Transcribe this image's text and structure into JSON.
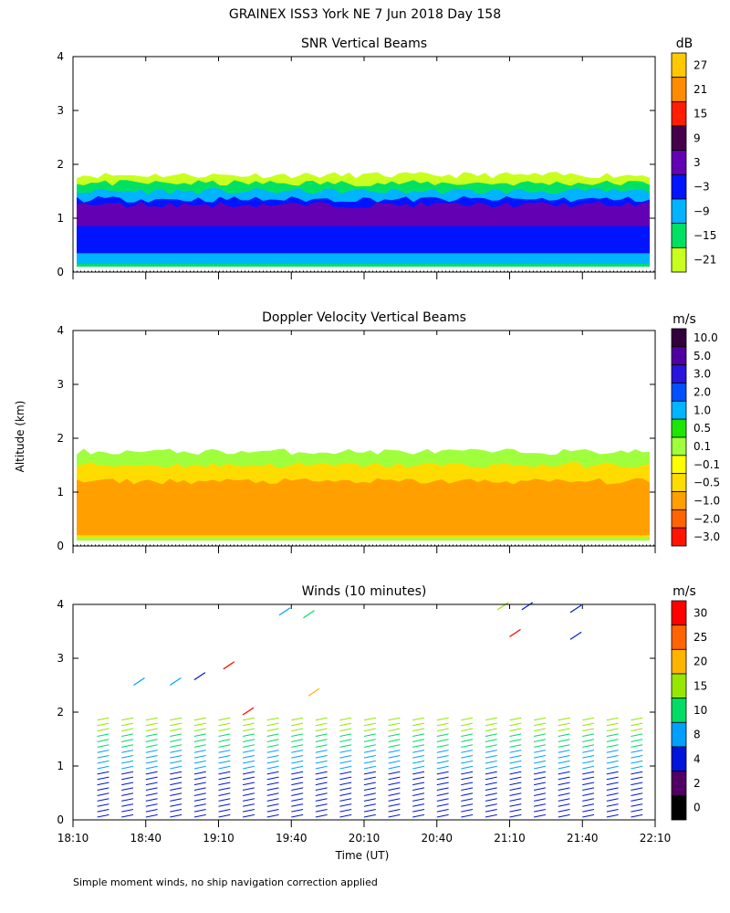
{
  "title": "GRAINEX ISS3 York NE   7 Jun 2018 Day 158",
  "footnote": "Simple moment winds, no ship navigation correction applied",
  "colors": {
    "axis": "#000000"
  },
  "chart_data": [
    {
      "type": "heatmap",
      "title": "SNR Vertical Beams",
      "ylabel": "",
      "ylim": [
        0,
        4
      ],
      "yticks": [
        "0",
        "1",
        "2",
        "3",
        "4"
      ],
      "xlim": [
        "18:10",
        "22:10"
      ],
      "colorbar_unit": "dB",
      "colorbar_labels": [
        "27",
        "21",
        "15",
        "9",
        "3",
        "−3",
        "−9",
        "−15",
        "−21"
      ],
      "colorbar_colors": [
        "#ffc800",
        "#ff8c00",
        "#ff1e00",
        "#46004b",
        "#6400b4",
        "#0014ff",
        "#00b4ff",
        "#00e164",
        "#c8ff1e"
      ],
      "layers": [
        {
          "alt_from": 0.1,
          "alt_to": 1.8,
          "color": "#c8ff1e"
        },
        {
          "alt_from": 0.1,
          "alt_to": 1.65,
          "color": "#00e164"
        },
        {
          "alt_from": 0.15,
          "alt_to": 1.5,
          "color": "#00b4ff"
        },
        {
          "alt_from": 0.35,
          "alt_to": 1.35,
          "color": "#0014ff"
        },
        {
          "alt_from": 0.85,
          "alt_to": 1.25,
          "color": "#6400b4"
        }
      ]
    },
    {
      "type": "heatmap",
      "title": "Doppler Velocity Vertical Beams",
      "ylabel": "Altitude (km)",
      "ylim": [
        0,
        4
      ],
      "yticks": [
        "0",
        "1",
        "2",
        "3",
        "4"
      ],
      "xlim": [
        "18:10",
        "22:10"
      ],
      "colorbar_unit": "m/s",
      "colorbar_labels": [
        "10.0",
        "5.0",
        "3.0",
        "2.0",
        "1.0",
        "0.5",
        "0.1",
        "−0.1",
        "−0.5",
        "−1.0",
        "−2.0",
        "−3.0"
      ],
      "colorbar_colors": [
        "#32003c",
        "#5000a0",
        "#2814dc",
        "#0050ff",
        "#00b4ff",
        "#1ee600",
        "#a0ff3c",
        "#ffff00",
        "#ffdc00",
        "#ffa000",
        "#ff6400",
        "#ff1400"
      ],
      "layers": [
        {
          "alt_from": 0.1,
          "alt_to": 1.75,
          "color": "#a0ff3c"
        },
        {
          "alt_from": 0.15,
          "alt_to": 1.5,
          "color": "#ffdc00"
        },
        {
          "alt_from": 0.2,
          "alt_to": 1.2,
          "color": "#ffa000"
        }
      ]
    },
    {
      "type": "wind_barbs",
      "title": "Winds (10 minutes)",
      "ylabel": "",
      "xlabel": "Time (UT)",
      "ylim": [
        0,
        4
      ],
      "yticks": [
        "0",
        "1",
        "2",
        "3",
        "4"
      ],
      "xticks": [
        "18:10",
        "18:40",
        "19:10",
        "19:40",
        "20:10",
        "20:40",
        "21:10",
        "21:40",
        "22:10"
      ],
      "colorbar_unit": "m/s",
      "colorbar_labels": [
        "30",
        "25",
        "20",
        "15",
        "10",
        "8",
        "4",
        "2",
        "0"
      ],
      "colorbar_colors": [
        "#ff0000",
        "#ff6400",
        "#ffb400",
        "#96e600",
        "#00dc64",
        "#00a0ff",
        "#0014dc",
        "#500064",
        "#000000"
      ],
      "profile_times": [
        "18:20",
        "18:30",
        "18:40",
        "18:50",
        "19:00",
        "19:10",
        "19:20",
        "19:30",
        "19:40",
        "19:50",
        "20:00",
        "20:10",
        "20:20",
        "20:30",
        "20:40",
        "20:50",
        "21:00",
        "21:10",
        "21:20",
        "21:30",
        "21:40",
        "21:50",
        "22:00"
      ],
      "profile_top_km": 1.9,
      "upper_barbs": [
        {
          "time": "18:35",
          "alt": 2.5,
          "speed": 8
        },
        {
          "time": "18:50",
          "alt": 2.5,
          "speed": 8
        },
        {
          "time": "19:00",
          "alt": 2.6,
          "speed": 4
        },
        {
          "time": "19:12",
          "alt": 2.8,
          "speed": 30
        },
        {
          "time": "19:20",
          "alt": 1.95,
          "speed": 30
        },
        {
          "time": "19:35",
          "alt": 3.8,
          "speed": 8
        },
        {
          "time": "19:45",
          "alt": 3.75,
          "speed": 10
        },
        {
          "time": "19:47",
          "alt": 2.3,
          "speed": 22
        },
        {
          "time": "21:05",
          "alt": 3.9,
          "speed": 15
        },
        {
          "time": "21:10",
          "alt": 3.4,
          "speed": 30
        },
        {
          "time": "21:15",
          "alt": 3.9,
          "speed": 4
        },
        {
          "time": "21:35",
          "alt": 3.85,
          "speed": 4
        },
        {
          "time": "21:35",
          "alt": 3.35,
          "speed": 4
        }
      ]
    }
  ]
}
